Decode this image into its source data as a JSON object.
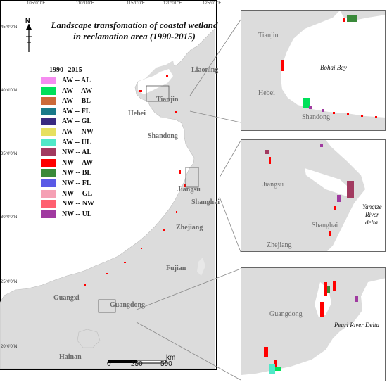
{
  "title_line1": "Landscape transfomation of coastal wetland",
  "title_line2": "in reclamation area (1990-2015)",
  "north_label": "N",
  "lon_labels": [
    "105°0'0\"E",
    "110°0'0\"E",
    "115°0'0\"E",
    "120°0'0\"E",
    "125°0'0\"E"
  ],
  "lat_labels": [
    "45°0'0\"N",
    "40°0'0\"N",
    "35°0'0\"N",
    "30°0'0\"N",
    "25°0'0\"N",
    "20°0'0\"N"
  ],
  "legend": {
    "title": "1990--2015",
    "items": [
      {
        "label": "AW -- AL",
        "color": "#f58cf0"
      },
      {
        "label": "AW -- AW",
        "color": "#00e05a"
      },
      {
        "label": "AW -- BL",
        "color": "#cc6a3a"
      },
      {
        "label": "AW -- FL",
        "color": "#1a7a8a"
      },
      {
        "label": "AW -- GL",
        "color": "#3a2a80"
      },
      {
        "label": "AW -- NW",
        "color": "#e6e060"
      },
      {
        "label": "AW -- UL",
        "color": "#50e8c8"
      },
      {
        "label": "NW -- AL",
        "color": "#a23a60"
      },
      {
        "label": "NW -- AW",
        "color": "#ff0000"
      },
      {
        "label": "NW -- BL",
        "color": "#3a8a3a"
      },
      {
        "label": "NW -- FL",
        "color": "#5a5ae6"
      },
      {
        "label": "NW -- GL",
        "color": "#f5a0b4"
      },
      {
        "label": "NW -- NW",
        "color": "#ff6070"
      },
      {
        "label": "NW -- UL",
        "color": "#a03aa0"
      }
    ]
  },
  "provinces": {
    "liaoning": "Liaoning",
    "tianjin": "Tianjin",
    "hebei": "Hebei",
    "shandong": "Shandong",
    "jiangsu": "Jiangsu",
    "shanghai": "Shanghai",
    "zhejiang": "Zhejiang",
    "fujian": "Fujian",
    "guangxi": "Guangxi",
    "guangdong": "Guangdong",
    "hainan": "Hainan"
  },
  "scale": {
    "unit": "km",
    "ticks": [
      "0",
      "250",
      "500"
    ]
  },
  "inset1": {
    "tianjin": "Tianjin",
    "hebei": "Hebei",
    "shandong": "Shandong",
    "water": "Bohai Bay"
  },
  "inset2": {
    "jiangsu": "Jiangsu",
    "shanghai": "Shanghai",
    "zhejiang": "Zhejiang",
    "water_l1": "Yangtze",
    "water_l2": "River",
    "water_l3": "delta"
  },
  "inset3": {
    "guangdong": "Guangdong",
    "water": "Pearl River Delta"
  }
}
